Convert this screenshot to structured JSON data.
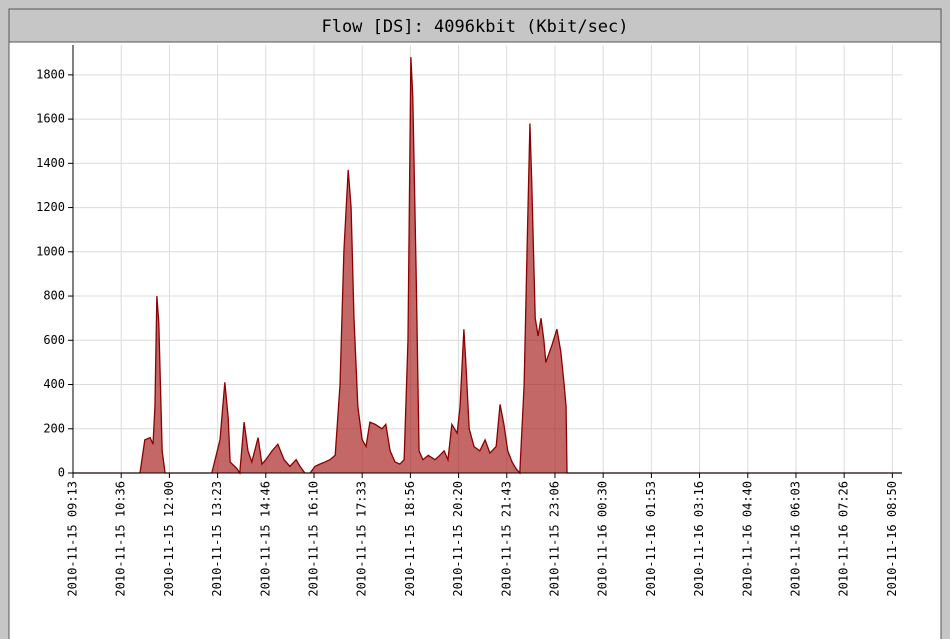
{
  "chart_data": {
    "type": "area",
    "title": "Flow [DS]: 4096kbit (Kbit/sec)",
    "x": [
      0,
      1.39,
      1.49,
      1.6,
      1.66,
      1.7,
      1.74,
      1.78,
      1.85,
      1.91,
      2.88,
      3.05,
      3.15,
      3.22,
      3.26,
      3.4,
      3.46,
      3.55,
      3.63,
      3.71,
      3.84,
      3.92,
      4.0,
      4.13,
      4.25,
      4.38,
      4.5,
      4.63,
      4.71,
      4.81,
      4.92,
      5.02,
      5.12,
      5.23,
      5.33,
      5.44,
      5.54,
      5.62,
      5.71,
      5.77,
      5.83,
      5.91,
      6.0,
      6.08,
      6.16,
      6.27,
      6.41,
      6.49,
      6.58,
      6.68,
      6.78,
      6.87,
      6.95,
      7.01,
      7.05,
      7.12,
      7.18,
      7.26,
      7.37,
      7.51,
      7.61,
      7.7,
      7.78,
      7.86,
      7.97,
      8.03,
      8.11,
      8.15,
      8.22,
      8.32,
      8.44,
      8.55,
      8.65,
      8.78,
      8.86,
      8.94,
      9.02,
      9.11,
      9.19,
      9.27,
      9.36,
      9.42,
      9.48,
      9.52,
      9.59,
      9.65,
      9.71,
      9.77,
      9.81,
      9.94,
      10.04,
      10.12,
      10.19,
      10.23,
      10.25,
      17.2
    ],
    "series": [
      {
        "name": "Flow",
        "color": "#a31515",
        "values": [
          0,
          0,
          150,
          160,
          130,
          300,
          800,
          680,
          100,
          0,
          0,
          150,
          410,
          250,
          50,
          20,
          0,
          230,
          100,
          50,
          160,
          40,
          60,
          100,
          130,
          60,
          30,
          60,
          30,
          0,
          0,
          30,
          40,
          50,
          60,
          80,
          400,
          1000,
          1370,
          1200,
          700,
          300,
          150,
          120,
          230,
          220,
          200,
          220,
          100,
          50,
          40,
          60,
          600,
          1880,
          1700,
          900,
          100,
          60,
          80,
          60,
          80,
          100,
          60,
          220,
          180,
          300,
          650,
          500,
          200,
          120,
          100,
          150,
          90,
          120,
          310,
          220,
          100,
          50,
          20,
          0,
          400,
          1000,
          1580,
          1300,
          700,
          620,
          700,
          600,
          500,
          580,
          650,
          550,
          400,
          300,
          0,
          0
        ]
      }
    ],
    "xlim": [
      0,
      17.2
    ],
    "xticks": [
      {
        "value": 0,
        "label": "2010-11-15 09:13"
      },
      {
        "value": 1,
        "label": "2010-11-15 10:36"
      },
      {
        "value": 2,
        "label": "2010-11-15 12:00"
      },
      {
        "value": 3,
        "label": "2010-11-15 13:23"
      },
      {
        "value": 4,
        "label": "2010-11-15 14:46"
      },
      {
        "value": 5,
        "label": "2010-11-15 16:10"
      },
      {
        "value": 6,
        "label": "2010-11-15 17:33"
      },
      {
        "value": 7,
        "label": "2010-11-15 18:56"
      },
      {
        "value": 8,
        "label": "2010-11-15 20:20"
      },
      {
        "value": 9,
        "label": "2010-11-15 21:43"
      },
      {
        "value": 10,
        "label": "2010-11-15 23:06"
      },
      {
        "value": 11,
        "label": "2010-11-16 00:30"
      },
      {
        "value": 12,
        "label": "2010-11-16 01:53"
      },
      {
        "value": 13,
        "label": "2010-11-16 03:16"
      },
      {
        "value": 14,
        "label": "2010-11-16 04:40"
      },
      {
        "value": 15,
        "label": "2010-11-16 06:03"
      },
      {
        "value": 16,
        "label": "2010-11-16 07:26"
      },
      {
        "value": 17,
        "label": "2010-11-16 08:50"
      }
    ],
    "ylim": [
      0,
      1935
    ],
    "yticks": [
      0,
      200,
      400,
      600,
      800,
      1000,
      1200,
      1400,
      1600,
      1800
    ],
    "grid": true
  }
}
